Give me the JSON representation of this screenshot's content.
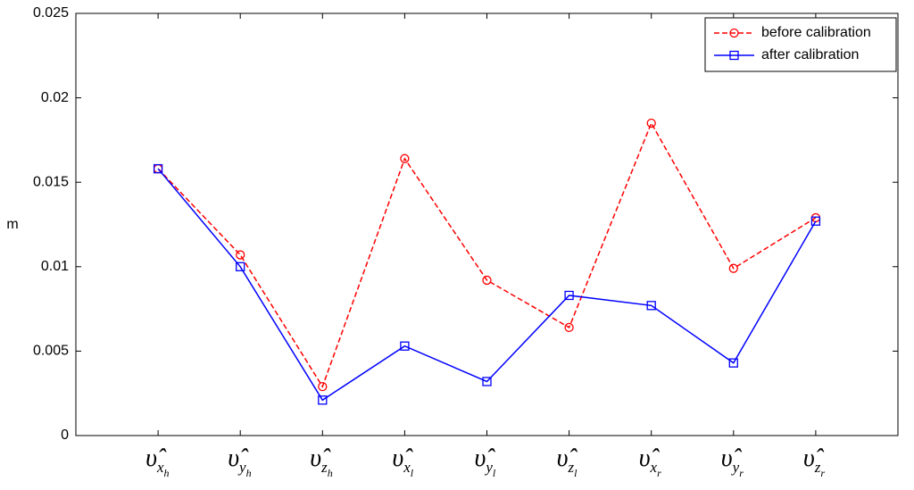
{
  "chart_data": {
    "type": "line",
    "y_label": "m",
    "categories": [
      {
        "base": "υ̂",
        "sub": "x",
        "subsub": "h"
      },
      {
        "base": "υ̂",
        "sub": "y",
        "subsub": "h"
      },
      {
        "base": "υ̂",
        "sub": "z",
        "subsub": "h"
      },
      {
        "base": "υ̂",
        "sub": "x",
        "subsub": "l"
      },
      {
        "base": "υ̂",
        "sub": "y",
        "subsub": "l"
      },
      {
        "base": "υ̂",
        "sub": "z",
        "subsub": "l"
      },
      {
        "base": "υ̂",
        "sub": "x",
        "subsub": "r"
      },
      {
        "base": "υ̂",
        "sub": "y",
        "subsub": "r"
      },
      {
        "base": "υ̂",
        "sub": "z",
        "subsub": "r"
      }
    ],
    "series": [
      {
        "name": "before calibration",
        "color": "#ff0000",
        "line_style": "dashed",
        "marker": "circle",
        "values": [
          0.0158,
          0.0107,
          0.0029,
          0.0164,
          0.0092,
          0.0064,
          0.0185,
          0.0099,
          0.0129
        ]
      },
      {
        "name": "after calibration",
        "color": "#0000ff",
        "line_style": "solid",
        "marker": "square",
        "values": [
          0.0158,
          0.01,
          0.0021,
          0.0053,
          0.0032,
          0.0083,
          0.0077,
          0.0043,
          0.0127
        ]
      }
    ],
    "ylim": [
      0,
      0.025
    ],
    "yticks": [
      0,
      0.005,
      0.01,
      0.015,
      0.02,
      0.025
    ],
    "grid": false,
    "legend": "upper right"
  }
}
